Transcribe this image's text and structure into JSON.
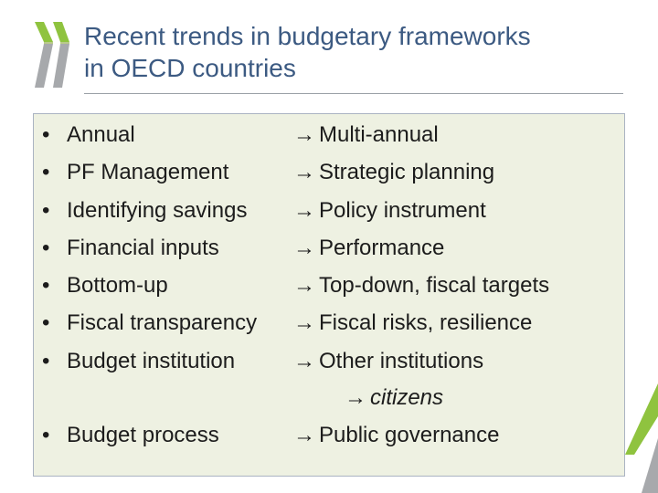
{
  "header": {
    "title_line1": "Recent trends in budgetary frameworks",
    "title_line2": "in OECD countries"
  },
  "colors": {
    "title": "#3c5a82",
    "logo_green": "#8fc33f",
    "logo_grey": "#a7a9ac",
    "panel": "#eef1e2"
  },
  "bullet_glyph": "•",
  "arrow_glyph": "→",
  "rows": [
    {
      "left": "Annual",
      "right": "Multi-annual"
    },
    {
      "left": "PF Management",
      "right": "Strategic planning"
    },
    {
      "left": "Identifying savings",
      "right": "Policy instrument"
    },
    {
      "left": "Financial inputs",
      "right": "Performance"
    },
    {
      "left": "Bottom-up",
      "right": "Top-down, fiscal targets"
    },
    {
      "left": "Fiscal transparency",
      "right": "Fiscal risks, resilience"
    },
    {
      "left": "Budget institution",
      "right": "Other institutions"
    }
  ],
  "sub_note": "citizens",
  "last_row": {
    "left": "Budget process",
    "right": "Public governance"
  }
}
